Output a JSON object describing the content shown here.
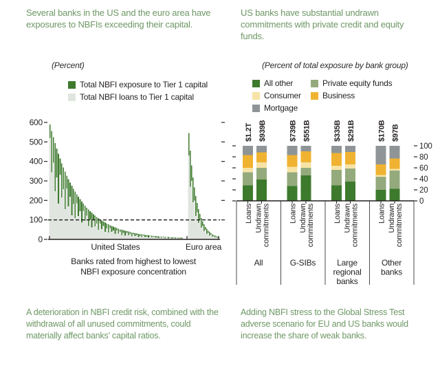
{
  "left_panel": {
    "header": "Several banks in the US and the euro area have exposures to NBFIs exceeding their capital.",
    "unit_label": "(Percent)",
    "legend": [
      {
        "label": "Total NBFI exposure to Tier 1 capital",
        "color": "#3d7a2d"
      },
      {
        "label": "Total NBFI loans to Tier 1 capital",
        "color": "#e1e5e0"
      }
    ],
    "footnote": "A deterioration in NBFI credit risk, combined with the withdrawal of all unused commitments, could materially affect banks’ capital ratios."
  },
  "right_panel": {
    "header": "US banks have substantial undrawn commitments with private credit and equity funds.",
    "unit_label": "(Percent of total exposure by bank group)",
    "legend_col1": [
      {
        "label": "All other",
        "color": "#3d7a2d"
      },
      {
        "label": "Consumer",
        "color": "#f6e3a5"
      },
      {
        "label": "Mortgage",
        "color": "#8f9596"
      }
    ],
    "legend_col2": [
      {
        "label": "Private equity funds",
        "color": "#94aa7d"
      },
      {
        "label": "Business",
        "color": "#f0b331"
      }
    ],
    "footnote": "Adding NBFI stress to the Global Stress Test adverse scenario for EU and US banks would increase the share of weak banks."
  },
  "chart_data": [
    {
      "type": "bar",
      "subtype": "sorted-distribution",
      "title": "Several banks in the US and the euro area have exposures to NBFIs exceeding their capital.",
      "ylabel": "Percent",
      "ylim": [
        0,
        600
      ],
      "yticks": [
        0,
        100,
        200,
        300,
        400,
        500,
        600
      ],
      "threshold_line": 100,
      "xlabel_line1": "Banks rated from highest to lowest",
      "xlabel_line2": "NBFI exposure concentration",
      "series": [
        {
          "name": "Total NBFI exposure to Tier 1 capital",
          "color": "#3d7a2d"
        },
        {
          "name": "Total NBFI loans to Tier 1 capital",
          "color": "#e1e5e0"
        }
      ],
      "groups": [
        {
          "label": "United States",
          "exposure": [
            590,
            556,
            524,
            494,
            466,
            439,
            414,
            390,
            368,
            347,
            327,
            309,
            291,
            275,
            259,
            245,
            231,
            218,
            206,
            194,
            183,
            173,
            163,
            154,
            145,
            137,
            129,
            122,
            115,
            109,
            103,
            97,
            92,
            87,
            82,
            77,
            73,
            69,
            65,
            62,
            58,
            55,
            52,
            49,
            47,
            44,
            42,
            40,
            38,
            36,
            34,
            32,
            30,
            29,
            27,
            26,
            25,
            23,
            22,
            21,
            20,
            19,
            18,
            17,
            16,
            16,
            15,
            14,
            14,
            13,
            12,
            12,
            11,
            11,
            10,
            10,
            9,
            9,
            9,
            8
          ],
          "loans": [
            520,
            345,
            393,
            247,
            317,
            184,
            331,
            215,
            258,
            156,
            262,
            170,
            218,
            124,
            181,
            110,
            185,
            120,
            144,
            87,
            146,
            95,
            122,
            69,
            102,
            62,
            103,
            67,
            81,
            49,
            82,
            53,
            69,
            39,
            57,
            35,
            58,
            38,
            46,
            28,
            46,
            30,
            39,
            22,
            33,
            20,
            34,
            22,
            27,
            16,
            27,
            18,
            23,
            13,
            18,
            12,
            20,
            13,
            15,
            9,
            16,
            10,
            13,
            8,
            11,
            7,
            12,
            8,
            10,
            6,
            10,
            6,
            8,
            5,
            7,
            4,
            7,
            5,
            6,
            4
          ]
        },
        {
          "label": "Euro area",
          "exposure": [
            545,
            455,
            380,
            318,
            266,
            223,
            187,
            156,
            131,
            110,
            92,
            77,
            64,
            54,
            45,
            38,
            32,
            27,
            22,
            19,
            16,
            13
          ],
          "loans": [
            430,
            270,
            300,
            190,
            200,
            120,
            140,
            85,
            100,
            60,
            68,
            42,
            50,
            28,
            34,
            20,
            24,
            14,
            16,
            10,
            11,
            7
          ]
        }
      ]
    },
    {
      "type": "bar",
      "stacked": true,
      "title": "US banks have substantial undrawn commitments with private credit and equity funds.",
      "ylabel": "Percent of total exposure by bank group",
      "ylim": [
        0,
        100
      ],
      "yticks": [
        0,
        20,
        40,
        60,
        80,
        100
      ],
      "segments_bottom_to_top": [
        "All other",
        "Private equity funds",
        "Consumer",
        "Business",
        "Mortgage"
      ],
      "segment_colors": {
        "All other": "#3d7a2d",
        "Private equity funds": "#94aa7d",
        "Consumer": "#f6e3a5",
        "Business": "#f0b331",
        "Mortgage": "#8f9596"
      },
      "groups": [
        {
          "label": "All",
          "label_lines": [
            "All"
          ],
          "bars": [
            {
              "label": "Loans",
              "label_lines": [
                "Loans"
              ],
              "total": "$1.2T",
              "values": {
                "All other": 28,
                "Private equity funds": 24,
                "Consumer": 8,
                "Business": 23,
                "Mortgage": 17
              }
            },
            {
              "label": "Undrawn commitments",
              "label_lines": [
                "Undrawn",
                "commitments"
              ],
              "total": "$939B",
              "values": {
                "All other": 39,
                "Private equity funds": 21,
                "Consumer": 10,
                "Business": 18,
                "Mortgage": 12
              }
            }
          ]
        },
        {
          "label": "G-SIBs",
          "label_lines": [
            "G-SIBs"
          ],
          "bars": [
            {
              "label": "Loans",
              "label_lines": [
                "Loans"
              ],
              "total": "$739B",
              "values": {
                "All other": 27,
                "Private equity funds": 25,
                "Consumer": 10,
                "Business": 21,
                "Mortgage": 17
              }
            },
            {
              "label": "Undrawn commitments",
              "label_lines": [
                "Undrawn",
                "commitments"
              ],
              "total": "$551B",
              "values": {
                "All other": 46,
                "Private equity funds": 14,
                "Consumer": 10,
                "Business": 20,
                "Mortgage": 10
              }
            }
          ]
        },
        {
          "label": "Large regional banks",
          "label_lines": [
            "Large",
            "regional",
            "banks"
          ],
          "bars": [
            {
              "label": "Loans",
              "label_lines": [
                "Loans"
              ],
              "total": "$335B",
              "values": {
                "All other": 28,
                "Private equity funds": 28,
                "Consumer": 8,
                "Business": 23,
                "Mortgage": 13
              }
            },
            {
              "label": "Undrawn commitments",
              "label_lines": [
                "Undrawn",
                "commitments"
              ],
              "total": "$291B",
              "values": {
                "All other": 35,
                "Private equity funds": 24,
                "Consumer": 7,
                "Business": 23,
                "Mortgage": 11
              }
            }
          ]
        },
        {
          "label": "Other banks",
          "label_lines": [
            "Other",
            "banks"
          ],
          "bars": [
            {
              "label": "Loans",
              "label_lines": [
                "Loans"
              ],
              "total": "$170B",
              "values": {
                "All other": 20,
                "Private equity funds": 24,
                "Consumer": 3,
                "Business": 19,
                "Mortgage": 34
              }
            },
            {
              "label": "Undrawn commitments",
              "label_lines": [
                "Undrawn",
                "commitments"
              ],
              "total": "$97B",
              "values": {
                "All other": 22,
                "Private equity funds": 33,
                "Consumer": 3,
                "Business": 19,
                "Mortgage": 23
              }
            }
          ]
        }
      ]
    }
  ]
}
